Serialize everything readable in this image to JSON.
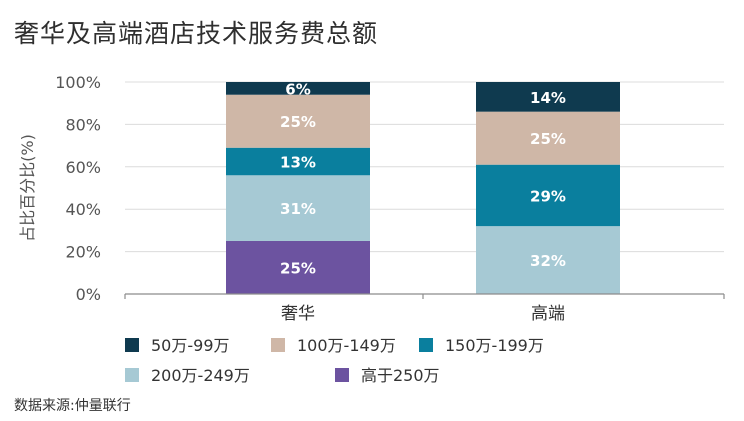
{
  "chart_data": {
    "type": "bar",
    "stacked": true,
    "title": "奢华及高端酒店技术服务费总额",
    "ylabel": "占比百分比(%)",
    "xlabel": "",
    "ylim": [
      0,
      100
    ],
    "y_ticks": [
      "0%",
      "20%",
      "40%",
      "60%",
      "80%",
      "100%"
    ],
    "categories": [
      "奢华",
      "高端"
    ],
    "series": [
      {
        "name": "高于250万",
        "color": "#6c53a0",
        "values": [
          25,
          0
        ],
        "labels": [
          "25%",
          ""
        ]
      },
      {
        "name": "200万-249万",
        "color": "#a6c9d4",
        "values": [
          31,
          32
        ],
        "labels": [
          "31%",
          "32%"
        ]
      },
      {
        "name": "150万-199万",
        "color": "#0a7f9e",
        "values": [
          13,
          29
        ],
        "labels": [
          "13%",
          "29%"
        ]
      },
      {
        "name": "100万-149万",
        "color": "#cfb7a7",
        "values": [
          25,
          25
        ],
        "labels": [
          "25%",
          "25%"
        ]
      },
      {
        "name": "50万-99万",
        "color": "#0f3a4f",
        "values": [
          6,
          14
        ],
        "labels": [
          "6%",
          "14%"
        ]
      }
    ],
    "legend_order": [
      "50万-99万",
      "100万-149万",
      "150万-199万",
      "200万-249万",
      "高于250万"
    ],
    "legend_position": "bottom",
    "grid": true
  },
  "source": "数据来源:仲量联行"
}
